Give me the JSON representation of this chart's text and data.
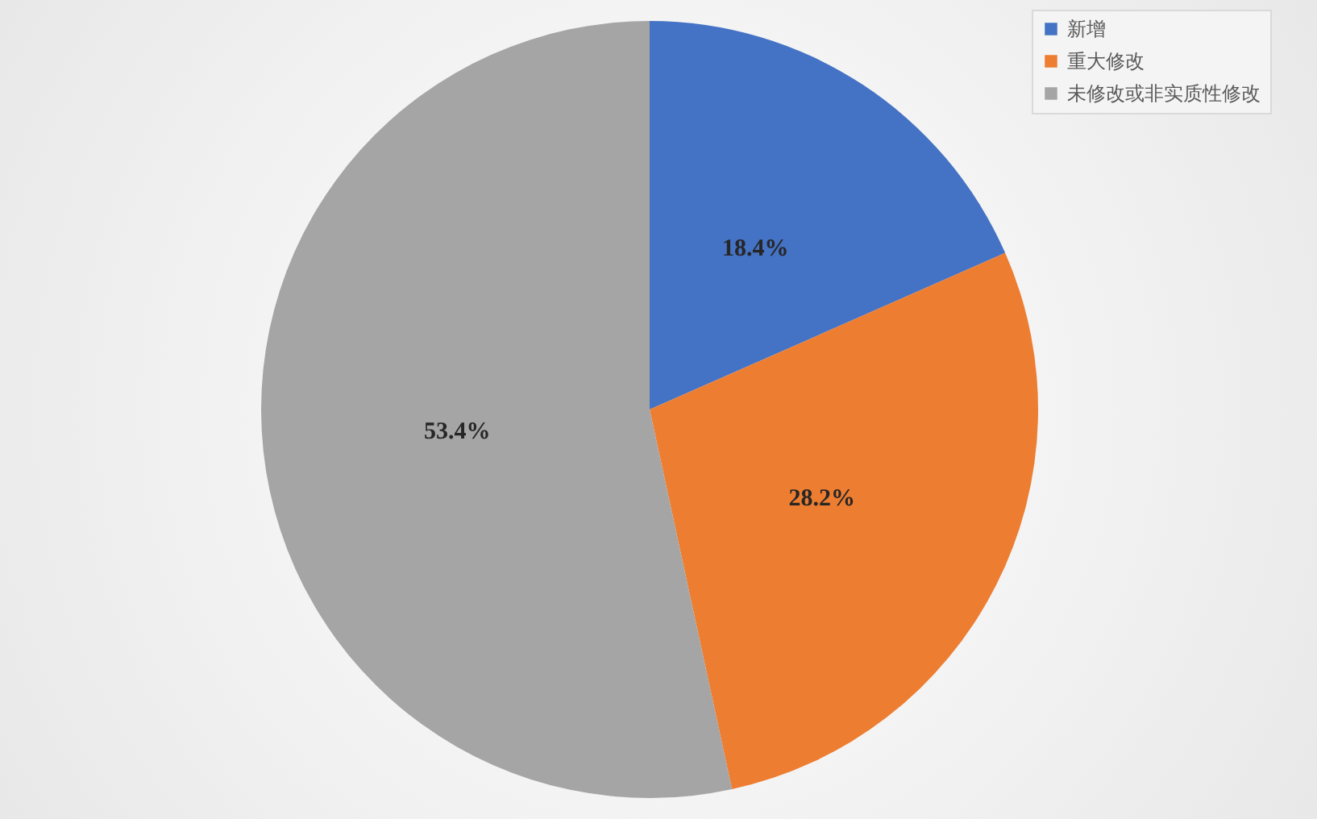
{
  "chart_data": {
    "type": "pie",
    "categories": [
      "新增",
      "重大修改",
      "未修改或非实质性修改"
    ],
    "values": [
      18.4,
      28.2,
      53.4
    ],
    "colors": [
      "#4472c4",
      "#ed7d31",
      "#a5a5a5"
    ],
    "value_labels": [
      "18.4%",
      "28.2%",
      "53.4%"
    ],
    "legend": "top right"
  }
}
